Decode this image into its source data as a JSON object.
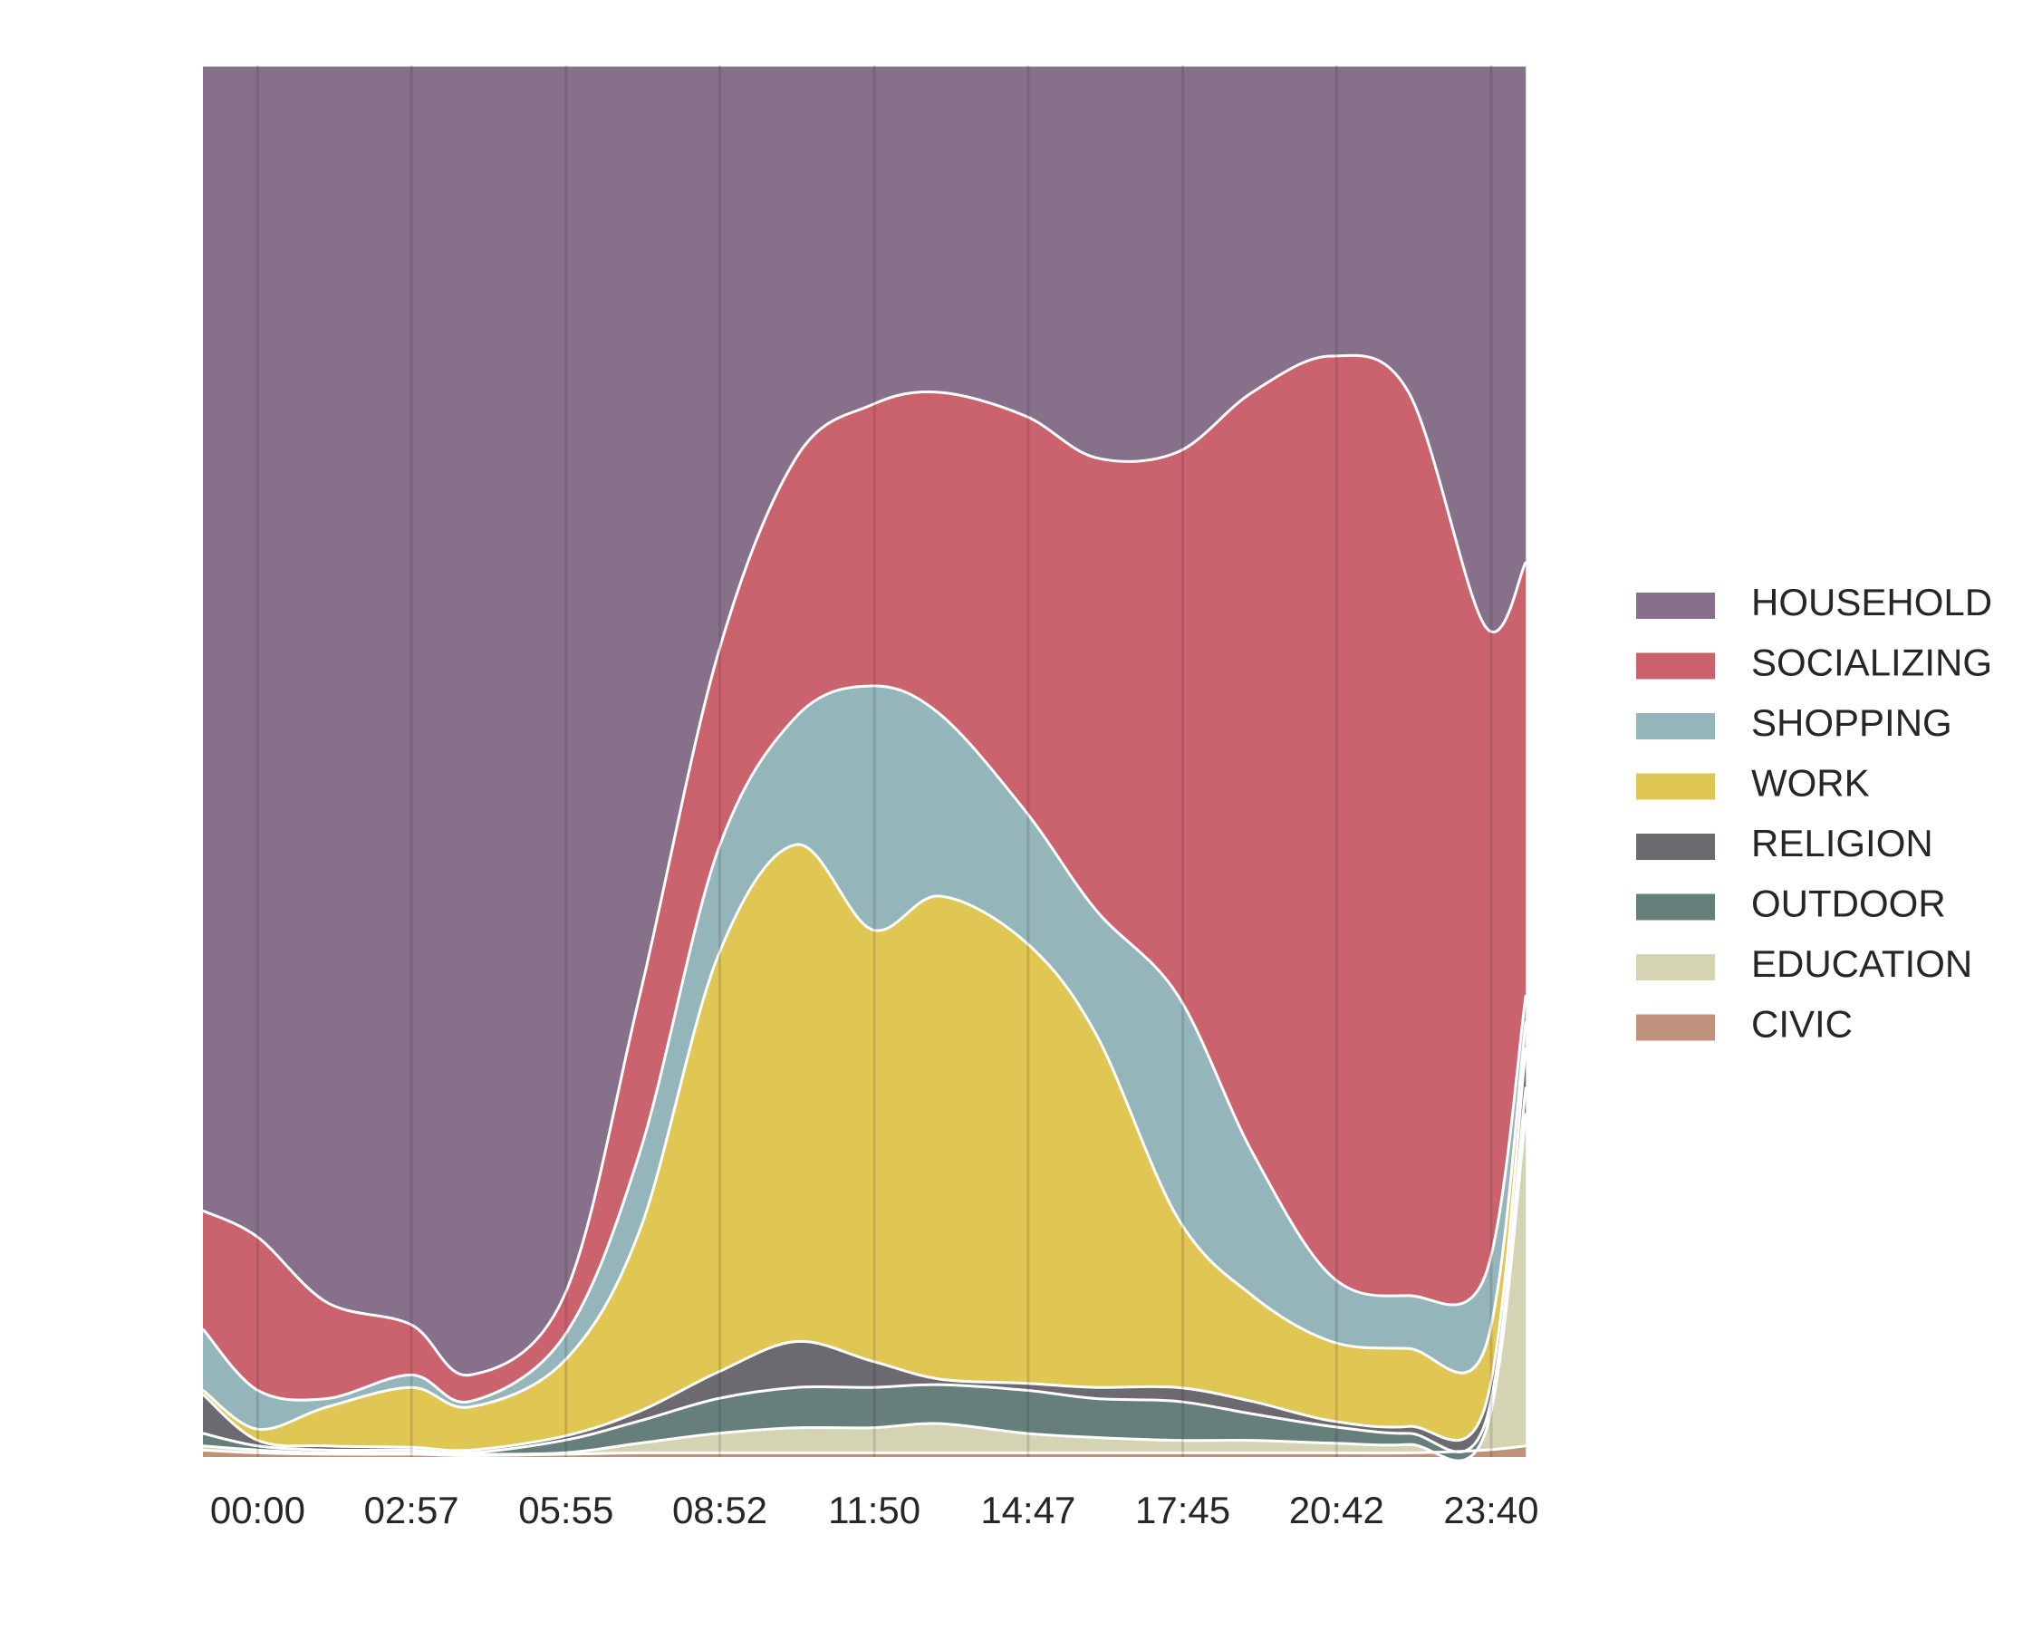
{
  "chart_data": {
    "type": "stacked-area",
    "x": [
      -63,
      0,
      80,
      177,
      245,
      353,
      440,
      530,
      620,
      707,
      785,
      884,
      965,
      1059,
      1145,
      1236,
      1325,
      1413,
      1460
    ],
    "xlim": [
      -63,
      1467
    ],
    "xticks": [
      {
        "value": 0,
        "label": "00:00"
      },
      {
        "value": 177,
        "label": "02:57"
      },
      {
        "value": 355,
        "label": "05:55"
      },
      {
        "value": 532,
        "label": "08:52"
      },
      {
        "value": 710,
        "label": "11:50"
      },
      {
        "value": 887,
        "label": "14:47"
      },
      {
        "value": 1065,
        "label": "17:45"
      },
      {
        "value": 1242,
        "label": "20:42"
      },
      {
        "value": 1420,
        "label": "23:40"
      }
    ],
    "ylim": [
      0,
      100
    ],
    "grid": true,
    "legend": "right",
    "series": [
      {
        "name": "HOUSEHOLD",
        "color": "#87718a",
        "values": [
          82.3,
          84.2,
          88.9,
          90.5,
          94.1,
          88.4,
          66.8,
          42.3,
          28.2,
          24.4,
          23.5,
          25.2,
          28.2,
          27.8,
          23.5,
          20.9,
          23.5,
          40.3,
          35.7
        ]
      },
      {
        "name": "SOCIALIZING",
        "color": "#cb636e",
        "values": [
          8.5,
          11.0,
          6.9,
          3.6,
          1.9,
          2.9,
          11.3,
          14.1,
          18.6,
          20.2,
          23.1,
          28.4,
          32.5,
          39.0,
          54.6,
          66.1,
          64.9,
          46.7,
          31.1
        ]
      },
      {
        "name": "SHOPPING",
        "color": "#94b5ba",
        "values": [
          4.4,
          2.8,
          0.6,
          0.9,
          0.4,
          1.8,
          5.6,
          7.6,
          9.2,
          17.5,
          13.1,
          9.4,
          8.9,
          16.0,
          10.3,
          4.7,
          3.8,
          5.2,
          1.9
        ]
      },
      {
        "name": "WORK",
        "color": "#e0c653",
        "values": [
          0.3,
          0.8,
          2.8,
          4.3,
          3.1,
          5.4,
          13.0,
          29.9,
          35.7,
          31.0,
          34.7,
          31.7,
          25.4,
          12.2,
          7.6,
          5.7,
          5.6,
          4.2,
          1.9
        ]
      },
      {
        "name": "RELIGION",
        "color": "#6c6a6f",
        "values": [
          2.8,
          0.4,
          0.3,
          0.2,
          0.2,
          0.3,
          0.7,
          1.9,
          3.3,
          1.9,
          0.4,
          0.5,
          0.8,
          1.0,
          0.9,
          0.4,
          0.5,
          1.2,
          2.8
        ]
      },
      {
        "name": "OUTDOOR",
        "color": "#677f7b",
        "values": [
          0.9,
          0.3,
          0.2,
          0.2,
          0.1,
          0.9,
          1.6,
          2.5,
          2.9,
          2.9,
          2.8,
          3.1,
          2.8,
          2.8,
          1.9,
          1.2,
          0.8,
          0.7,
          1.9
        ]
      },
      {
        "name": "EDUCATION",
        "color": "#d4d4b2",
        "values": [
          0.3,
          0.2,
          0.1,
          0.1,
          0.1,
          0.1,
          0.7,
          1.4,
          1.8,
          1.8,
          2.1,
          1.4,
          1.1,
          0.9,
          0.9,
          0.7,
          0.6,
          1.2,
          23.9
        ]
      },
      {
        "name": "CIVIC",
        "color": "#c0917a",
        "values": [
          0.5,
          0.3,
          0.2,
          0.2,
          0.1,
          0.2,
          0.3,
          0.3,
          0.3,
          0.3,
          0.3,
          0.3,
          0.3,
          0.3,
          0.3,
          0.3,
          0.3,
          0.5,
          0.8
        ]
      }
    ]
  }
}
